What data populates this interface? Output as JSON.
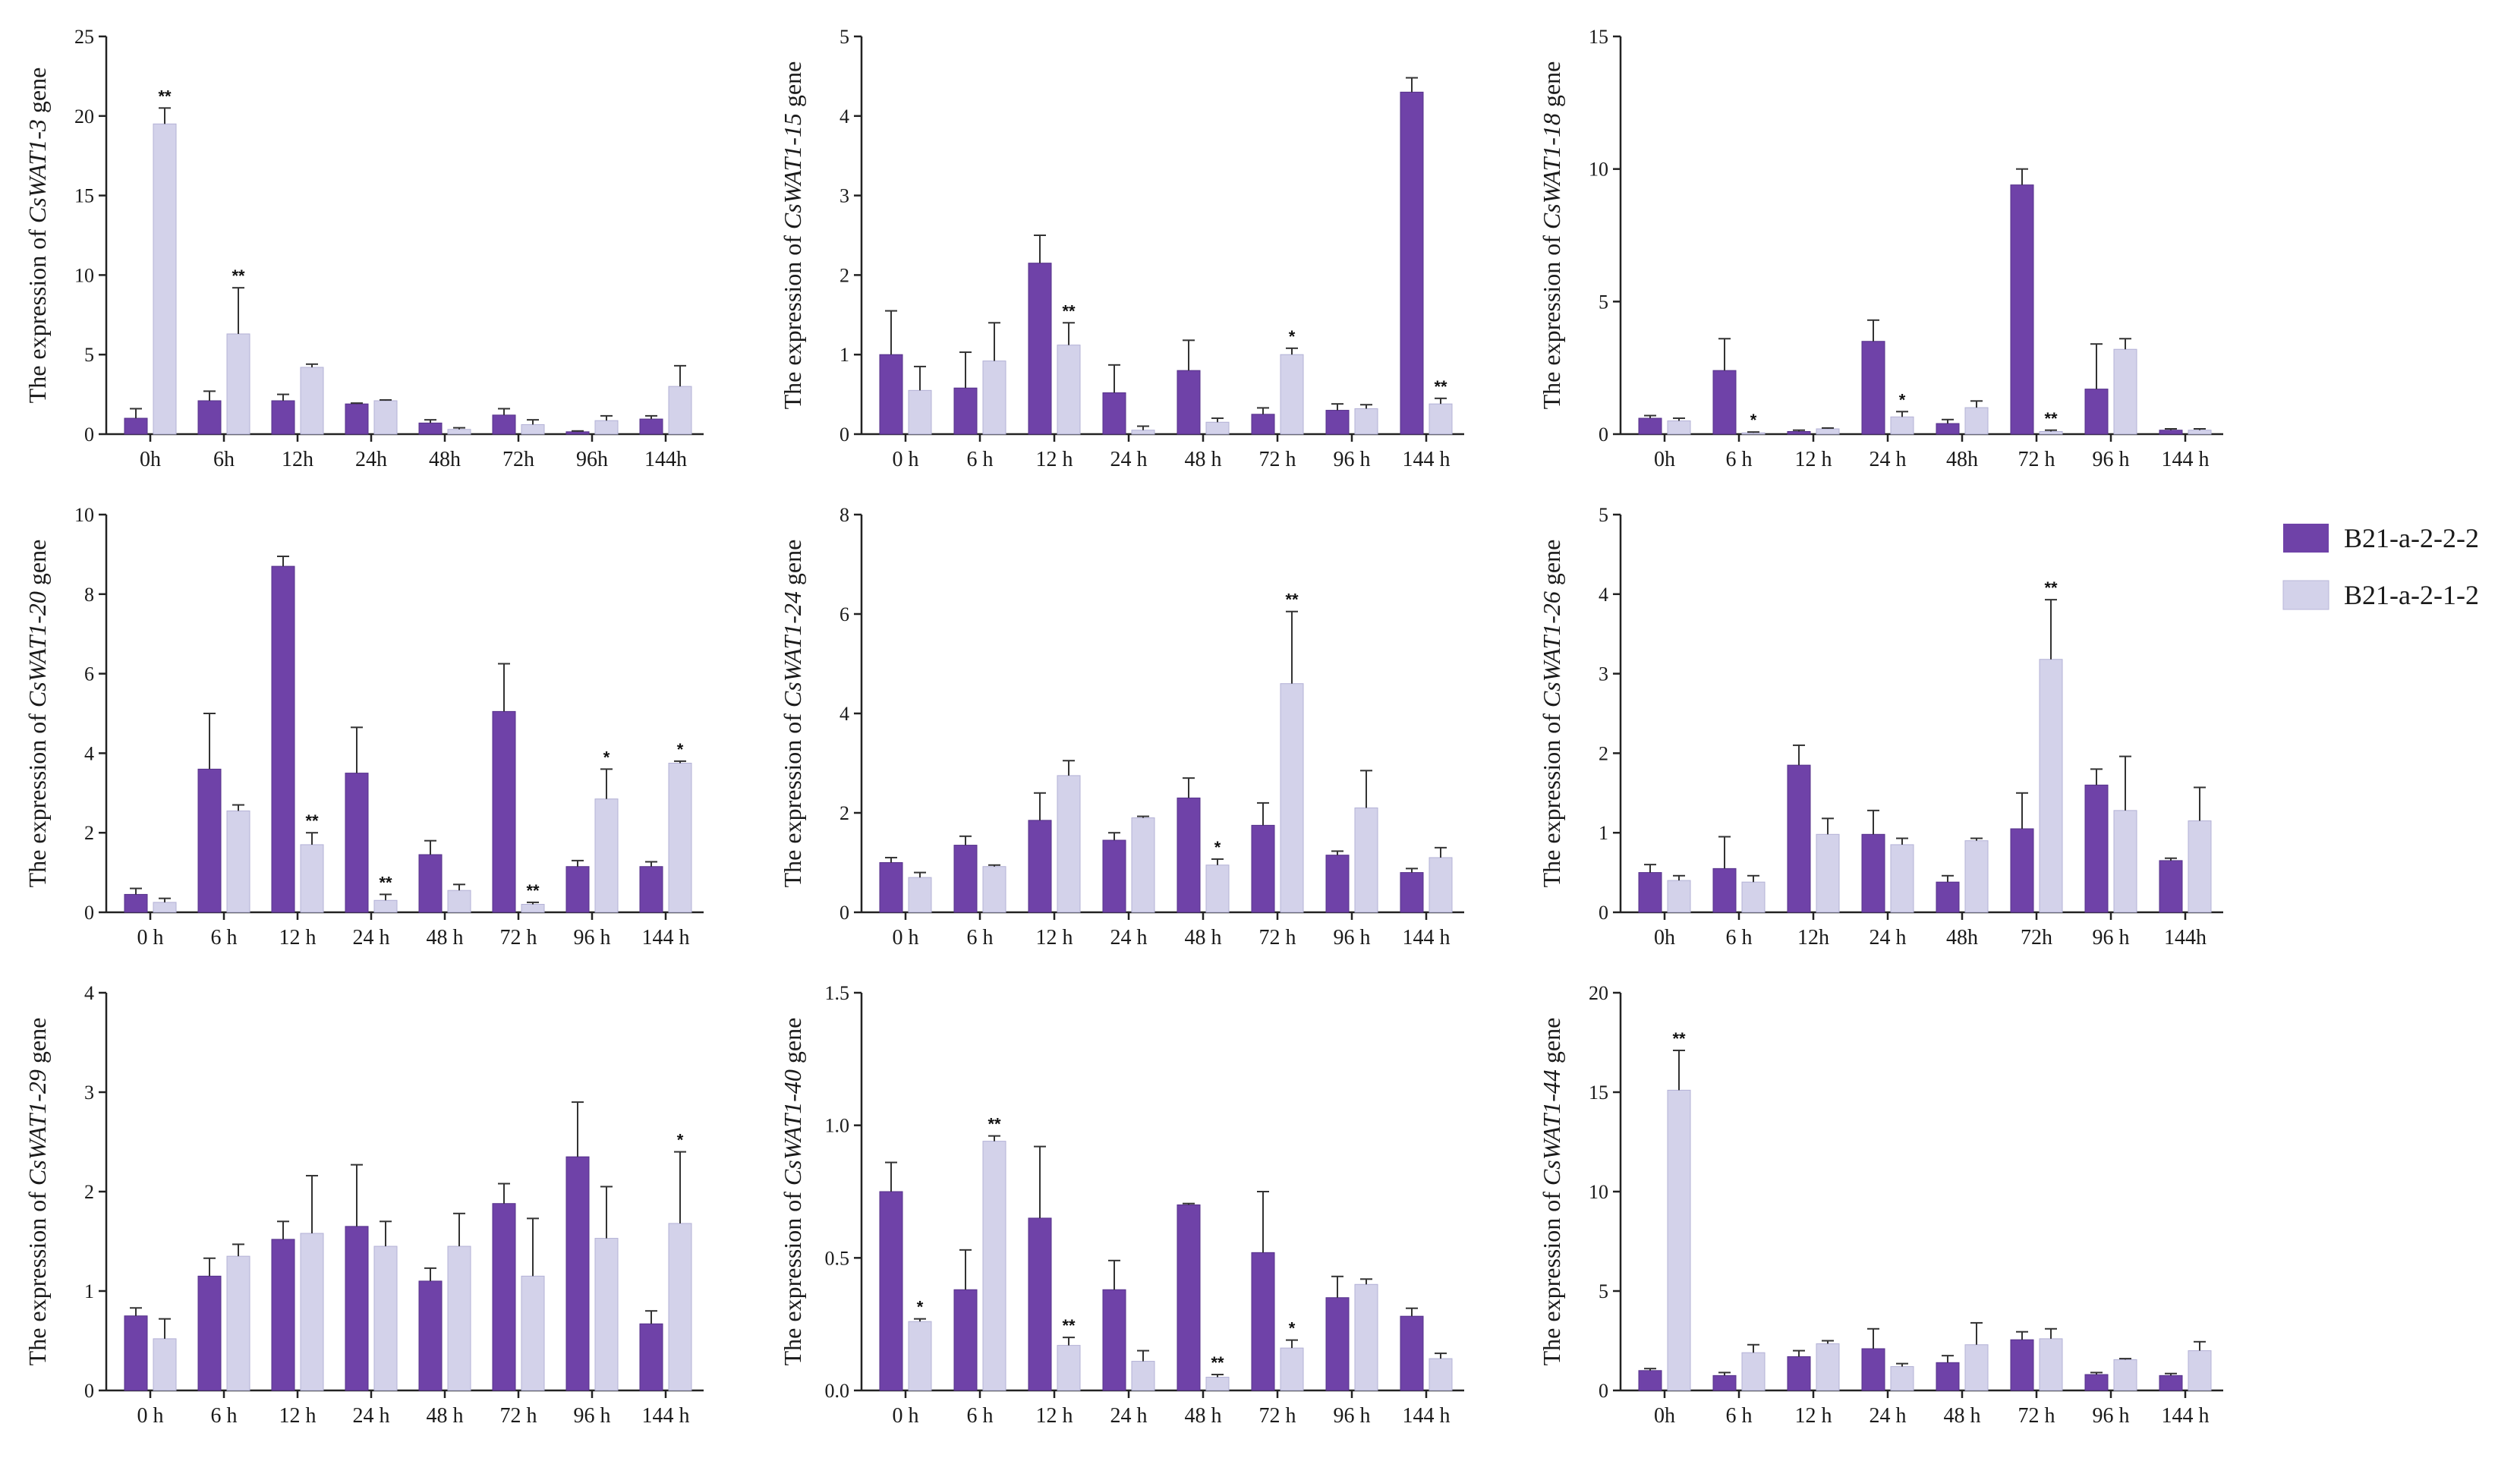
{
  "legend": [
    {
      "name": "B21-a-2-2-2",
      "color": "#6f42a8"
    },
    {
      "name": "B21-a-2-1-2",
      "color": "#d3d2ea"
    }
  ],
  "chart_data": [
    {
      "type": "bar",
      "title": "",
      "y_prefix": "The expression of ",
      "gene": "CsWAT1-3",
      "y_suffix": " gene",
      "categories": [
        "0h",
        "6h",
        "12h",
        "24h",
        "48h",
        "72h",
        "96h",
        "144h"
      ],
      "ylim": [
        0,
        25
      ],
      "yticks": [
        0,
        5,
        10,
        15,
        20,
        25
      ],
      "ytick_labels": [
        "0",
        "5",
        "10",
        "15",
        "20",
        "25"
      ],
      "series": [
        {
          "name": "B21-a-2-2-2",
          "values": [
            1.0,
            2.1,
            2.1,
            1.9,
            0.7,
            1.2,
            0.15,
            0.95
          ],
          "errors": [
            0.6,
            0.6,
            0.4,
            0.05,
            0.2,
            0.4,
            0.05,
            0.2
          ]
        },
        {
          "name": "B21-a-2-1-2",
          "values": [
            19.5,
            6.3,
            4.2,
            2.1,
            0.3,
            0.6,
            0.85,
            3.0
          ],
          "errors": [
            1.0,
            2.9,
            0.2,
            0.05,
            0.1,
            0.3,
            0.3,
            1.3
          ]
        }
      ],
      "significance": [
        {
          "category": "0h",
          "series": 1,
          "mark": "**"
        },
        {
          "category": "6h",
          "series": 1,
          "mark": "**"
        }
      ]
    },
    {
      "type": "bar",
      "title": "",
      "y_prefix": "The expression of ",
      "gene": "CsWAT1-15",
      "y_suffix": " gene",
      "categories": [
        "0 h",
        "6 h",
        "12 h",
        "24 h",
        "48 h",
        "72 h",
        "96 h",
        "144 h"
      ],
      "ylim": [
        0,
        5
      ],
      "yticks": [
        0,
        1,
        2,
        3,
        4,
        5
      ],
      "ytick_labels": [
        "0",
        "1",
        "2",
        "3",
        "4",
        "5"
      ],
      "series": [
        {
          "name": "B21-a-2-2-2",
          "values": [
            1.0,
            0.58,
            2.15,
            0.52,
            0.8,
            0.25,
            0.3,
            4.3
          ],
          "errors": [
            0.55,
            0.45,
            0.35,
            0.35,
            0.38,
            0.08,
            0.08,
            0.18
          ]
        },
        {
          "name": "B21-a-2-1-2",
          "values": [
            0.55,
            0.92,
            1.12,
            0.05,
            0.15,
            1.0,
            0.32,
            0.38
          ],
          "errors": [
            0.3,
            0.48,
            0.28,
            0.05,
            0.05,
            0.08,
            0.05,
            0.07
          ]
        }
      ],
      "significance": [
        {
          "category": "12 h",
          "series": 1,
          "mark": "**"
        },
        {
          "category": "72 h",
          "series": 1,
          "mark": "*"
        },
        {
          "category": "144 h",
          "series": 1,
          "mark": "**"
        }
      ]
    },
    {
      "type": "bar",
      "title": "",
      "y_prefix": "The expression of ",
      "gene": "CsWAT1-18",
      "y_suffix": " gene",
      "categories": [
        "0h",
        "6 h",
        "12 h",
        "24 h",
        "48h",
        "72 h",
        "96 h",
        "144 h"
      ],
      "ylim": [
        0,
        15
      ],
      "yticks": [
        0,
        5,
        10,
        15
      ],
      "ytick_labels": [
        "0",
        "5",
        "10",
        "15"
      ],
      "series": [
        {
          "name": "B21-a-2-2-2",
          "values": [
            0.6,
            2.4,
            0.1,
            3.5,
            0.4,
            9.4,
            1.7,
            0.15
          ],
          "errors": [
            0.1,
            1.2,
            0.05,
            0.8,
            0.15,
            0.6,
            1.7,
            0.05
          ]
        },
        {
          "name": "B21-a-2-1-2",
          "values": [
            0.5,
            0.05,
            0.2,
            0.65,
            1.0,
            0.1,
            3.2,
            0.15
          ],
          "errors": [
            0.1,
            0.03,
            0.03,
            0.2,
            0.25,
            0.05,
            0.4,
            0.05
          ]
        }
      ],
      "significance": [
        {
          "category": "6 h",
          "series": 1,
          "mark": "*"
        },
        {
          "category": "24 h",
          "series": 1,
          "mark": "*"
        },
        {
          "category": "72 h",
          "series": 1,
          "mark": "**"
        }
      ]
    },
    {
      "type": "bar",
      "title": "",
      "y_prefix": "The expression of ",
      "gene": "CsWAT1-20",
      "y_suffix": " gene",
      "categories": [
        "0 h",
        "6 h",
        "12 h",
        "24 h",
        "48 h",
        "72 h",
        "96 h",
        "144 h"
      ],
      "ylim": [
        0,
        10
      ],
      "yticks": [
        0,
        2,
        4,
        6,
        8,
        10
      ],
      "ytick_labels": [
        "0",
        "2",
        "4",
        "6",
        "8",
        "10"
      ],
      "series": [
        {
          "name": "B21-a-2-2-2",
          "values": [
            0.45,
            3.6,
            8.7,
            3.5,
            1.45,
            5.05,
            1.15,
            1.15
          ],
          "errors": [
            0.15,
            1.4,
            0.25,
            1.15,
            0.35,
            1.2,
            0.15,
            0.12
          ]
        },
        {
          "name": "B21-a-2-1-2",
          "values": [
            0.25,
            2.55,
            1.7,
            0.3,
            0.55,
            0.2,
            2.85,
            3.75
          ],
          "errors": [
            0.1,
            0.15,
            0.3,
            0.15,
            0.15,
            0.05,
            0.75,
            0.05
          ]
        }
      ],
      "significance": [
        {
          "category": "12 h",
          "series": 1,
          "mark": "**"
        },
        {
          "category": "24 h",
          "series": 1,
          "mark": "**"
        },
        {
          "category": "72 h",
          "series": 1,
          "mark": "**"
        },
        {
          "category": "96 h",
          "series": 1,
          "mark": "*"
        },
        {
          "category": "144 h",
          "series": 1,
          "mark": "*"
        }
      ]
    },
    {
      "type": "bar",
      "title": "",
      "y_prefix": "The expression of ",
      "gene": "CsWAT1-24",
      "y_suffix": " gene",
      "categories": [
        "0 h",
        "6 h",
        "12 h",
        "24 h",
        "48 h",
        "72 h",
        "96 h",
        "144 h"
      ],
      "ylim": [
        0,
        8
      ],
      "yticks": [
        0,
        2,
        4,
        6,
        8
      ],
      "ytick_labels": [
        "0",
        "2",
        "4",
        "6",
        "8"
      ],
      "series": [
        {
          "name": "B21-a-2-2-2",
          "values": [
            1.0,
            1.35,
            1.85,
            1.45,
            2.3,
            1.75,
            1.15,
            0.8
          ],
          "errors": [
            0.1,
            0.18,
            0.55,
            0.15,
            0.4,
            0.45,
            0.08,
            0.08
          ]
        },
        {
          "name": "B21-a-2-1-2",
          "values": [
            0.7,
            0.92,
            2.75,
            1.9,
            0.95,
            4.6,
            2.1,
            1.1
          ],
          "errors": [
            0.1,
            0.03,
            0.3,
            0.03,
            0.12,
            1.45,
            0.75,
            0.2
          ]
        }
      ],
      "significance": [
        {
          "category": "48 h",
          "series": 1,
          "mark": "*"
        },
        {
          "category": "72 h",
          "series": 1,
          "mark": "**"
        }
      ]
    },
    {
      "type": "bar",
      "title": "",
      "y_prefix": "The expression of ",
      "gene": "CsWAT1-26",
      "y_suffix": " gene",
      "categories": [
        "0h",
        "6 h",
        "12h",
        "24 h",
        "48h",
        "72h",
        "96 h",
        "144h"
      ],
      "ylim": [
        0,
        5
      ],
      "yticks": [
        0,
        1,
        2,
        3,
        4,
        5
      ],
      "ytick_labels": [
        "0",
        "1",
        "2",
        "3",
        "4",
        "5"
      ],
      "series": [
        {
          "name": "B21-a-2-2-2",
          "values": [
            0.5,
            0.55,
            1.85,
            0.98,
            0.38,
            1.05,
            1.6,
            0.65
          ],
          "errors": [
            0.1,
            0.4,
            0.25,
            0.3,
            0.08,
            0.45,
            0.2,
            0.03
          ]
        },
        {
          "name": "B21-a-2-1-2",
          "values": [
            0.4,
            0.38,
            0.98,
            0.85,
            0.9,
            3.18,
            1.28,
            1.15
          ],
          "errors": [
            0.06,
            0.08,
            0.2,
            0.08,
            0.03,
            0.75,
            0.68,
            0.42
          ]
        }
      ],
      "significance": [
        {
          "category": "72h",
          "series": 1,
          "mark": "**"
        }
      ]
    },
    {
      "type": "bar",
      "title": "",
      "y_prefix": "The expression of ",
      "gene": "CsWAT1-29",
      "y_suffix": " gene",
      "categories": [
        "0 h",
        "6 h",
        "12 h",
        "24 h",
        "48 h",
        "72 h",
        "96 h",
        "144 h"
      ],
      "ylim": [
        0,
        4
      ],
      "yticks": [
        0,
        1,
        2,
        3,
        4
      ],
      "ytick_labels": [
        "0",
        "1",
        "2",
        "3",
        "4"
      ],
      "series": [
        {
          "name": "B21-a-2-2-2",
          "values": [
            0.75,
            1.15,
            1.52,
            1.65,
            1.1,
            1.88,
            2.35,
            0.67
          ],
          "errors": [
            0.08,
            0.18,
            0.18,
            0.62,
            0.13,
            0.2,
            0.55,
            0.13
          ]
        },
        {
          "name": "B21-a-2-1-2",
          "values": [
            0.52,
            1.35,
            1.58,
            1.45,
            1.45,
            1.15,
            1.53,
            1.68
          ],
          "errors": [
            0.2,
            0.12,
            0.58,
            0.25,
            0.33,
            0.58,
            0.52,
            0.72
          ]
        }
      ],
      "significance": [
        {
          "category": "144 h",
          "series": 1,
          "mark": "*"
        }
      ]
    },
    {
      "type": "bar",
      "title": "",
      "y_prefix": "The expression of ",
      "gene": "CsWAT1-40",
      "y_suffix": " gene",
      "categories": [
        "0  h",
        "6  h",
        "12  h",
        "24  h",
        "48  h",
        "72  h",
        "96  h",
        "144  h"
      ],
      "ylim": [
        0,
        1.5
      ],
      "yticks": [
        0,
        0.5,
        1.0,
        1.5
      ],
      "ytick_labels": [
        "0.0",
        "0.5",
        "1.0",
        "1.5"
      ],
      "series": [
        {
          "name": "B21-a-2-2-2",
          "values": [
            0.75,
            0.38,
            0.65,
            0.38,
            0.7,
            0.52,
            0.35,
            0.28
          ],
          "errors": [
            0.11,
            0.15,
            0.27,
            0.11,
            0.005,
            0.23,
            0.08,
            0.03
          ]
        },
        {
          "name": "B21-a-2-1-2",
          "values": [
            0.26,
            0.94,
            0.17,
            0.11,
            0.05,
            0.16,
            0.4,
            0.12
          ],
          "errors": [
            0.01,
            0.02,
            0.03,
            0.04,
            0.01,
            0.03,
            0.02,
            0.02
          ]
        }
      ],
      "significance": [
        {
          "category": "0  h",
          "series": 1,
          "mark": "*"
        },
        {
          "category": "6  h",
          "series": 1,
          "mark": "**"
        },
        {
          "category": "12  h",
          "series": 1,
          "mark": "**"
        },
        {
          "category": "48  h",
          "series": 1,
          "mark": "**"
        },
        {
          "category": "72  h",
          "series": 1,
          "mark": "*"
        }
      ]
    },
    {
      "type": "bar",
      "title": "",
      "y_prefix": "The expression of ",
      "gene": "CsWAT1-44",
      "y_suffix": " gene",
      "categories": [
        "0h",
        "6 h",
        "12 h",
        "24 h",
        "48 h",
        "72 h",
        "96 h",
        "144 h"
      ],
      "ylim": [
        0,
        20
      ],
      "yticks": [
        0,
        5,
        10,
        15,
        20
      ],
      "ytick_labels": [
        "0",
        "5",
        "10",
        "15",
        "20"
      ],
      "series": [
        {
          "name": "B21-a-2-2-2",
          "values": [
            1.0,
            0.75,
            1.7,
            2.1,
            1.4,
            2.55,
            0.8,
            0.75
          ],
          "errors": [
            0.1,
            0.15,
            0.3,
            1.0,
            0.35,
            0.4,
            0.1,
            0.1
          ]
        },
        {
          "name": "B21-a-2-1-2",
          "values": [
            15.1,
            1.9,
            2.35,
            1.2,
            2.3,
            2.6,
            1.55,
            2.0
          ],
          "errors": [
            2.0,
            0.4,
            0.15,
            0.15,
            1.1,
            0.5,
            0.05,
            0.45
          ]
        }
      ],
      "significance": [
        {
          "category": "0h",
          "series": 1,
          "mark": "**"
        }
      ]
    }
  ]
}
